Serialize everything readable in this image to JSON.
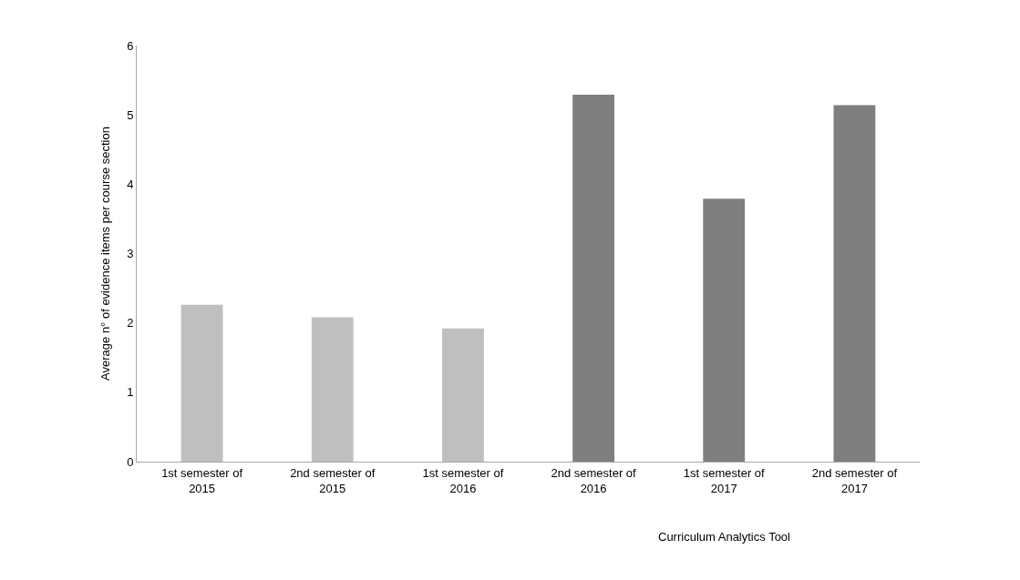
{
  "chart_data": {
    "type": "bar",
    "ylabel": "Average n° of evidence items per course section",
    "categories": [
      "1st semester of 2015",
      "2nd semester of 2015",
      "1st semester of 2016",
      "2nd semester of 2016",
      "1st semester of 2017",
      "2nd semester of 2017"
    ],
    "series": [
      {
        "color": "#bfbfbf",
        "values": [
          2.26,
          2.08,
          1.92,
          null,
          null,
          null
        ]
      },
      {
        "color": "#7f7f7f",
        "values": [
          null,
          null,
          null,
          5.29,
          3.79,
          5.14
        ]
      }
    ],
    "ylim": [
      0,
      6
    ],
    "yticks": [
      0,
      1,
      2,
      3,
      4,
      5,
      6
    ],
    "annotations": [
      "Curriculum Analytics Tool"
    ]
  }
}
